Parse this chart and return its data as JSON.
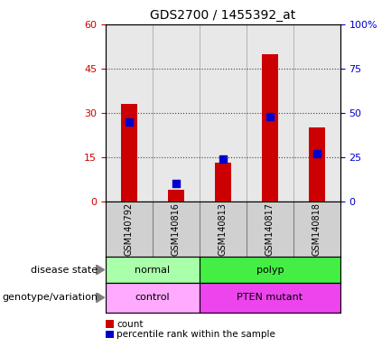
{
  "title": "GDS2700 / 1455392_at",
  "samples": [
    "GSM140792",
    "GSM140816",
    "GSM140813",
    "GSM140817",
    "GSM140818"
  ],
  "count_values": [
    33,
    4,
    13,
    50,
    25
  ],
  "percentile_values": [
    45,
    10,
    24,
    48,
    27
  ],
  "left_ylim": [
    0,
    60
  ],
  "left_yticks": [
    0,
    15,
    30,
    45,
    60
  ],
  "right_ylim": [
    0,
    100
  ],
  "right_yticks": [
    0,
    25,
    50,
    75,
    100
  ],
  "right_yticklabels": [
    "0",
    "25",
    "50",
    "75",
    "100%"
  ],
  "left_tick_color": "#cc0000",
  "right_tick_color": "#0000cc",
  "bar_color": "#cc0000",
  "dot_color": "#0000cc",
  "disease_groups": [
    {
      "label": "normal",
      "spans": [
        0,
        1
      ],
      "color": "#aaffaa"
    },
    {
      "label": "polyp",
      "spans": [
        2,
        3,
        4
      ],
      "color": "#44ee44"
    }
  ],
  "genotype_groups": [
    {
      "label": "control",
      "spans": [
        0,
        1
      ],
      "color": "#ffaaff"
    },
    {
      "label": "PTEN mutant",
      "spans": [
        2,
        3,
        4
      ],
      "color": "#ee44ee"
    }
  ],
  "row_labels": [
    "disease state",
    "genotype/variation"
  ],
  "legend_items": [
    {
      "color": "#cc0000",
      "label": "count"
    },
    {
      "color": "#0000cc",
      "label": "percentile rank within the sample"
    }
  ],
  "plot_bg_color": "#e8e8e8",
  "bar_width": 0.35,
  "dot_size": 40,
  "sample_box_color": "#d0d0d0"
}
